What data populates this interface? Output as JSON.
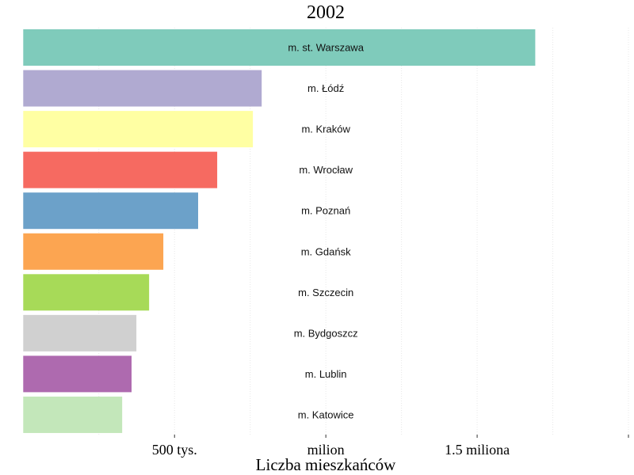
{
  "chart_data": {
    "type": "bar",
    "orientation": "horizontal",
    "title": "2002",
    "xlabel": "Liczba mieszkańców",
    "ylabel": "",
    "xlim": [
      0,
      2000000
    ],
    "grid": true,
    "legend": "none",
    "xticks": [
      {
        "value": 500000,
        "label": "500 tys."
      },
      {
        "value": 1000000,
        "label": "milion"
      },
      {
        "value": 1500000,
        "label": "1.5 miliona"
      },
      {
        "value": 2000000,
        "label": ""
      }
    ],
    "minor_gridlines": [
      250000,
      750000,
      1250000,
      1750000
    ],
    "categories": [
      "m. st. Warszawa",
      "m. Łódź",
      "m. Kraków",
      "m. Wrocław",
      "m. Poznań",
      "m. Gdańsk",
      "m. Szczecin",
      "m. Bydgoszcz",
      "m. Lublin",
      "m. Katowice"
    ],
    "values": [
      1692000,
      788000,
      759000,
      641000,
      578000,
      463000,
      416000,
      374000,
      358000,
      327000
    ],
    "colors": [
      "#7fcbbb",
      "#b0aad1",
      "#ffffa3",
      "#f66a61",
      "#6ca1c9",
      "#fca551",
      "#a7da58",
      "#d0d0d0",
      "#ae6aaf",
      "#c3e7ba"
    ]
  }
}
